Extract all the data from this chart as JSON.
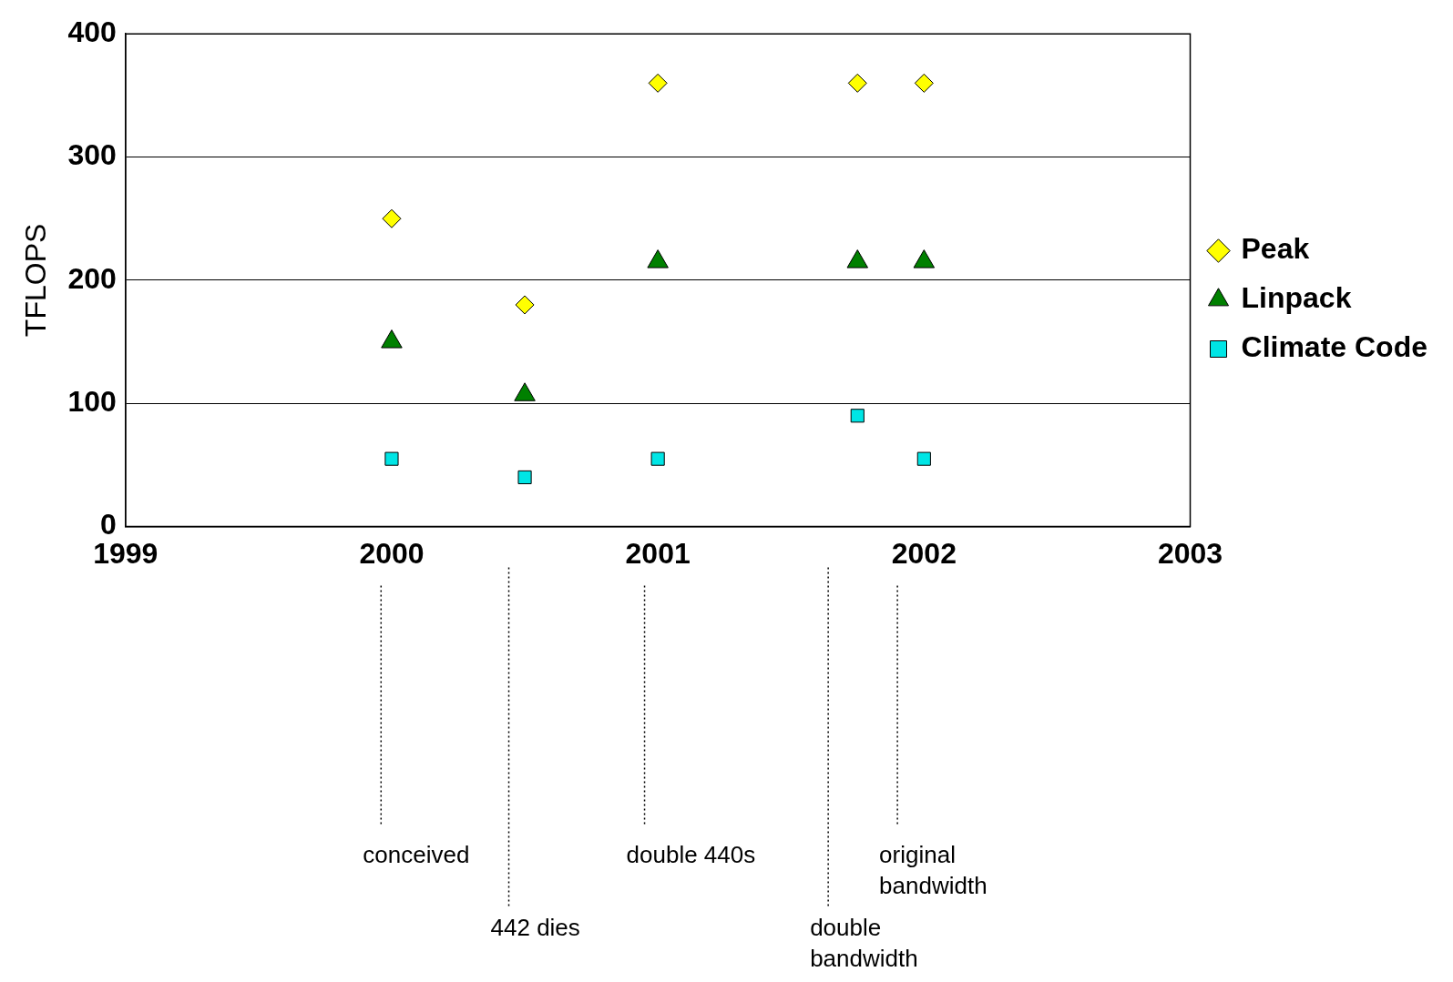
{
  "chart_data": {
    "type": "scatter",
    "ylabel": "TFLOPS",
    "xlim": [
      1999,
      2003
    ],
    "xticks": [
      1999,
      2000,
      2001,
      2002,
      2003
    ],
    "ylim": [
      0,
      400
    ],
    "yticks": [
      0,
      100,
      200,
      300,
      400
    ],
    "grid": "y",
    "legend": "right",
    "series": [
      {
        "name": "Peak",
        "color": "#ffff00",
        "marker": "diamond",
        "x": [
          2000,
          2000.5,
          2001,
          2001.75,
          2002
        ],
        "values": [
          250,
          180,
          360,
          360,
          360
        ]
      },
      {
        "name": "Linpack",
        "color": "#008000",
        "marker": "triangle",
        "x": [
          2000,
          2000.5,
          2001,
          2001.75,
          2002
        ],
        "values": [
          150,
          107,
          215,
          215,
          215
        ]
      },
      {
        "name": "Climate Code",
        "color": "#00e5e5",
        "marker": "square",
        "x": [
          2000,
          2000.5,
          2001,
          2001.75,
          2002
        ],
        "values": [
          55,
          40,
          55,
          90,
          55
        ]
      }
    ],
    "ref_lines": [
      {
        "axis": "x",
        "value": 1999.96,
        "label": "conceived",
        "line_style": "dotted"
      },
      {
        "axis": "x",
        "value": 2000.44,
        "label": "442 dies",
        "line_style": "dotted"
      },
      {
        "axis": "x",
        "value": 2000.95,
        "label": "double 440s",
        "line_style": "dotted"
      },
      {
        "axis": "x",
        "value": 2001.64,
        "label": "double bandwidth",
        "line_style": "dotted"
      },
      {
        "axis": "x",
        "value": 2001.9,
        "label": "original bandwidth",
        "line_style": "dotted"
      }
    ]
  }
}
